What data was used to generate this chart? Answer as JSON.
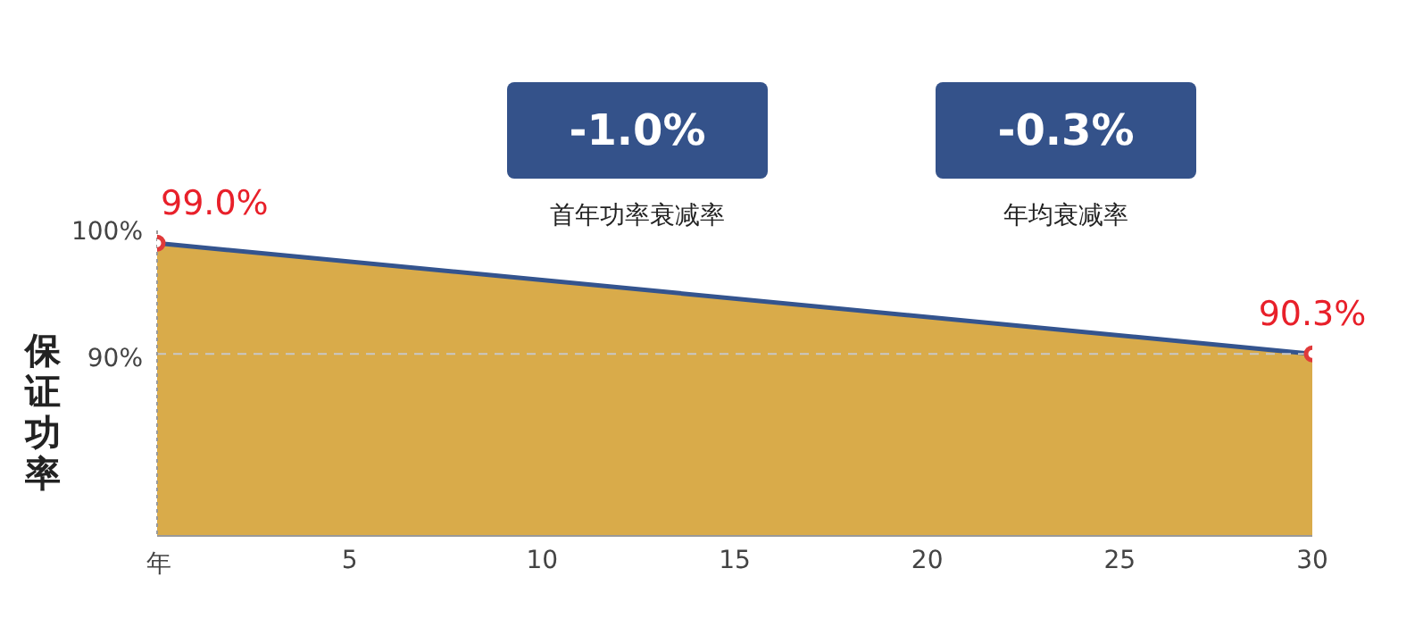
{
  "chart_data": {
    "type": "area",
    "ylabel": "保证功率",
    "xlabel": "年",
    "annotations": [
      "-1.0%",
      "首年功率衰减率",
      "-0.3%",
      "年均衰减率"
    ],
    "x": [
      0,
      30
    ],
    "series": [
      {
        "color": "#d9ab4a",
        "values": [
          99.0,
          90.3
        ],
        "value_labels": [
          "99.0%",
          "90.3%"
        ]
      }
    ],
    "xlim": [
      0,
      30
    ],
    "xticks": [
      5,
      10,
      15,
      20,
      25,
      30
    ],
    "ylim": [
      76,
      100
    ],
    "yticks": [
      {
        "value": 90,
        "label": "90%"
      },
      {
        "value": 100,
        "label": "100%"
      }
    ],
    "ref_lines": [
      {
        "axis": "y",
        "value": 90.3,
        "color": "#c8c8c8",
        "line_style": "dashed"
      }
    ],
    "marker": "circle",
    "grid": false
  }
}
